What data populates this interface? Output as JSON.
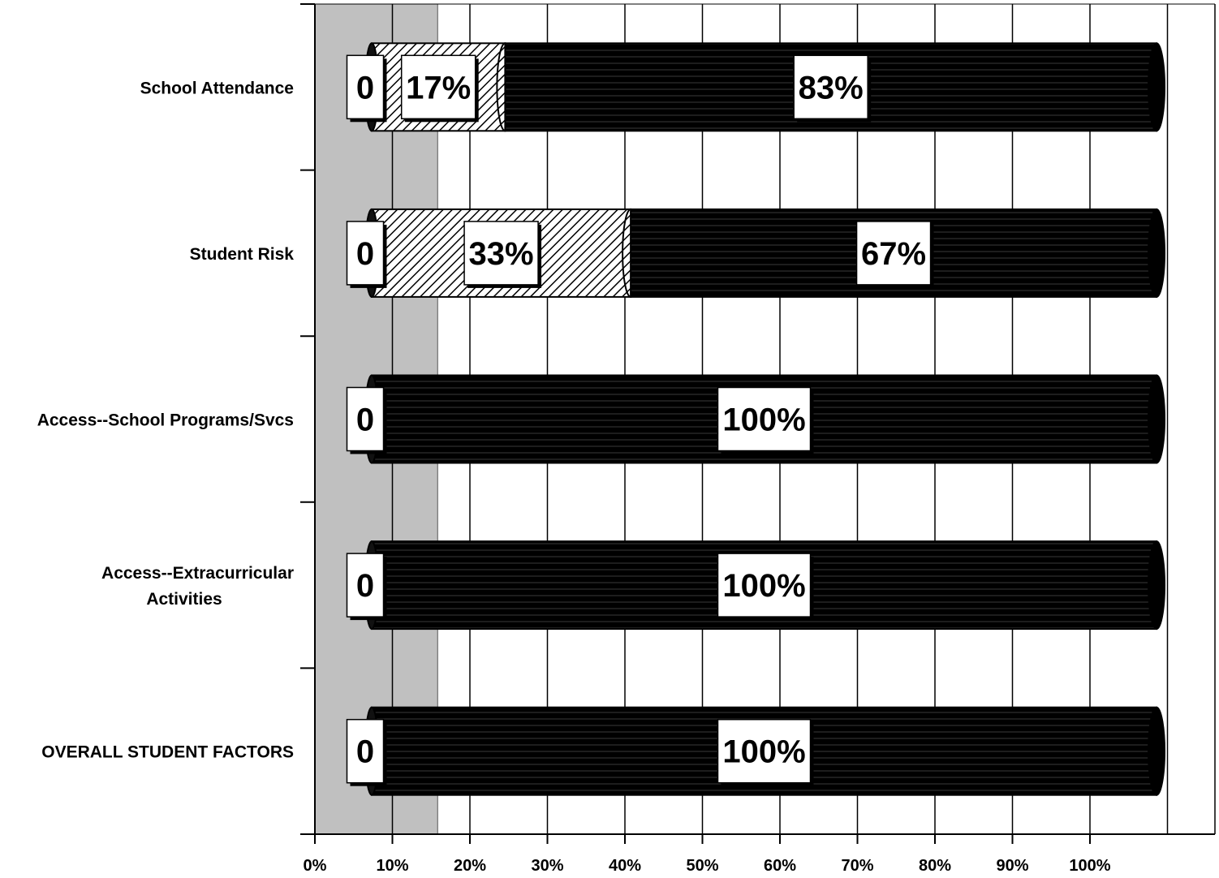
{
  "chart_data": {
    "type": "bar",
    "orientation": "horizontal",
    "stacked": true,
    "categories": [
      [
        "School Attendance"
      ],
      [
        "Student Risk"
      ],
      [
        "Access--School Programs/Svcs"
      ],
      [
        "Access--Extracurricular",
        "Activities"
      ],
      [
        "OVERALL STUDENT FACTORS"
      ]
    ],
    "series": [
      {
        "values": [
          0,
          0,
          0,
          0,
          0
        ],
        "labels": [
          "0",
          "0",
          "0",
          "0",
          "0"
        ],
        "color": "#9a9a9a"
      },
      {
        "values": [
          17,
          33,
          0,
          0,
          0
        ],
        "labels": [
          "17%",
          "33%",
          "",
          "",
          ""
        ],
        "color": "#ffffff",
        "pattern": "diagonal-hatch"
      },
      {
        "values": [
          83,
          67,
          100,
          100,
          100
        ],
        "labels": [
          "83%",
          "67%",
          "100%",
          "100%",
          "100%"
        ],
        "color": "#000000"
      }
    ],
    "xaxis": {
      "ticks": [
        "0%",
        "10%",
        "20%",
        "30%",
        "40%",
        "50%",
        "60%",
        "70%",
        "80%",
        "90%",
        "100%"
      ],
      "range": [
        0,
        100
      ]
    },
    "shaded_band": {
      "from": 0,
      "to": 15,
      "color": "#c0c0c0"
    },
    "grid": true,
    "legend": "none"
  }
}
